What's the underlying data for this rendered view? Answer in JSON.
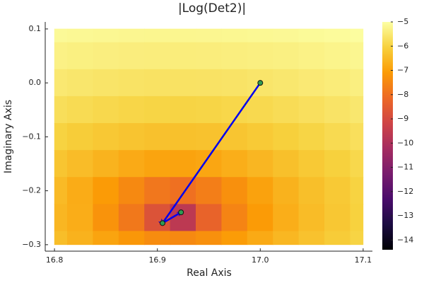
{
  "chart_data": {
    "type": "heatmap",
    "title": "|Log(Det2)|",
    "x_label": "Real Axis",
    "y_label": "Imaginary Axis",
    "x": [
      16.8,
      16.825,
      16.85,
      16.875,
      16.9,
      16.925,
      16.95,
      16.975,
      17.0,
      17.025,
      17.05,
      17.075,
      17.1
    ],
    "y": [
      0.1,
      0.05,
      0,
      -0.05,
      -0.1,
      -0.15,
      -0.2,
      -0.25,
      -0.3
    ],
    "z": [
      [
        -5.13,
        -5.16,
        -5.18,
        -5.2,
        -5.21,
        -5.21,
        -5.2,
        -5.19,
        -5.17,
        -5.15,
        -5.12,
        -5.09,
        -5.05
      ],
      [
        -5.31,
        -5.35,
        -5.38,
        -5.4,
        -5.41,
        -5.42,
        -5.41,
        -5.39,
        -5.37,
        -5.34,
        -5.3,
        -5.25,
        -5.2
      ],
      [
        -5.52,
        -5.57,
        -5.61,
        -5.64,
        -5.66,
        -5.66,
        -5.65,
        -5.63,
        -5.59,
        -5.55,
        -5.49,
        -5.44,
        -5.37
      ],
      [
        -5.75,
        -5.82,
        -5.88,
        -5.93,
        -5.96,
        -5.97,
        -5.95,
        -5.91,
        -5.86,
        -5.79,
        -5.72,
        -5.63,
        -5.55
      ],
      [
        -6.0,
        -6.12,
        -6.22,
        -6.3,
        -6.35,
        -6.36,
        -6.33,
        -6.27,
        -6.18,
        -6.07,
        -5.96,
        -5.84,
        -5.73
      ],
      [
        -6.27,
        -6.45,
        -6.63,
        -6.79,
        -6.91,
        -6.94,
        -6.87,
        -6.73,
        -6.56,
        -6.38,
        -6.2,
        -6.04,
        -5.89
      ],
      [
        -6.49,
        -6.76,
        -7.08,
        -7.46,
        -7.85,
        -7.99,
        -7.7,
        -7.31,
        -6.95,
        -6.65,
        -6.4,
        -6.19,
        -6.0
      ],
      [
        -6.56,
        -6.74,
        -7.25,
        -7.81,
        -8.75,
        -9.65,
        -8.3,
        -7.56,
        -7.08,
        -6.73,
        -6.46,
        -6.23,
        -6.03
      ],
      [
        -6.42,
        -6.65,
        -6.91,
        -7.17,
        -7.4,
        -7.46,
        -7.32,
        -7.07,
        -6.8,
        -6.55,
        -6.33,
        -6.14,
        -5.97
      ]
    ],
    "xlim": [
      16.791,
      17.109
    ],
    "ylim": [
      -0.312,
      0.113
    ],
    "xticks": [
      16.8,
      16.9,
      {
        "value": 17.0,
        "label": "17.0"
      },
      17.1
    ],
    "yticks": [
      {
        "value": -0.3,
        "label": "−0.3"
      },
      {
        "value": -0.2,
        "label": "−0.2"
      },
      {
        "value": -0.1,
        "label": "−0.1"
      },
      {
        "value": 0,
        "label": "0.0"
      },
      0.1
    ],
    "colorbar": {
      "lim": [
        -14.4,
        -5
      ],
      "ticks": [
        {
          "value": -5,
          "label": "−5"
        },
        {
          "value": -6,
          "label": "−6"
        },
        {
          "value": -7,
          "label": "−7"
        },
        {
          "value": -8,
          "label": "−8"
        },
        {
          "value": -9,
          "label": "−9"
        },
        {
          "value": -10,
          "label": "−10"
        },
        {
          "value": -11,
          "label": "−11"
        },
        {
          "value": -12,
          "label": "−12"
        },
        {
          "value": -13,
          "label": "−13"
        },
        {
          "value": -14,
          "label": "−14"
        }
      ],
      "colormap": [
        "#000004",
        "#1b0c41",
        "#4a0c6b",
        "#781c6d",
        "#a52c60",
        "#cf4446",
        "#ed6925",
        "#fb9b06",
        "#f7d13d",
        "#fcffa4"
      ]
    },
    "path": {
      "x": [
        17.0,
        16.905,
        16.923
      ],
      "y": [
        0,
        -0.26,
        -0.24
      ],
      "color": "#0000ee",
      "marker_color": "#2e9a52"
    }
  }
}
